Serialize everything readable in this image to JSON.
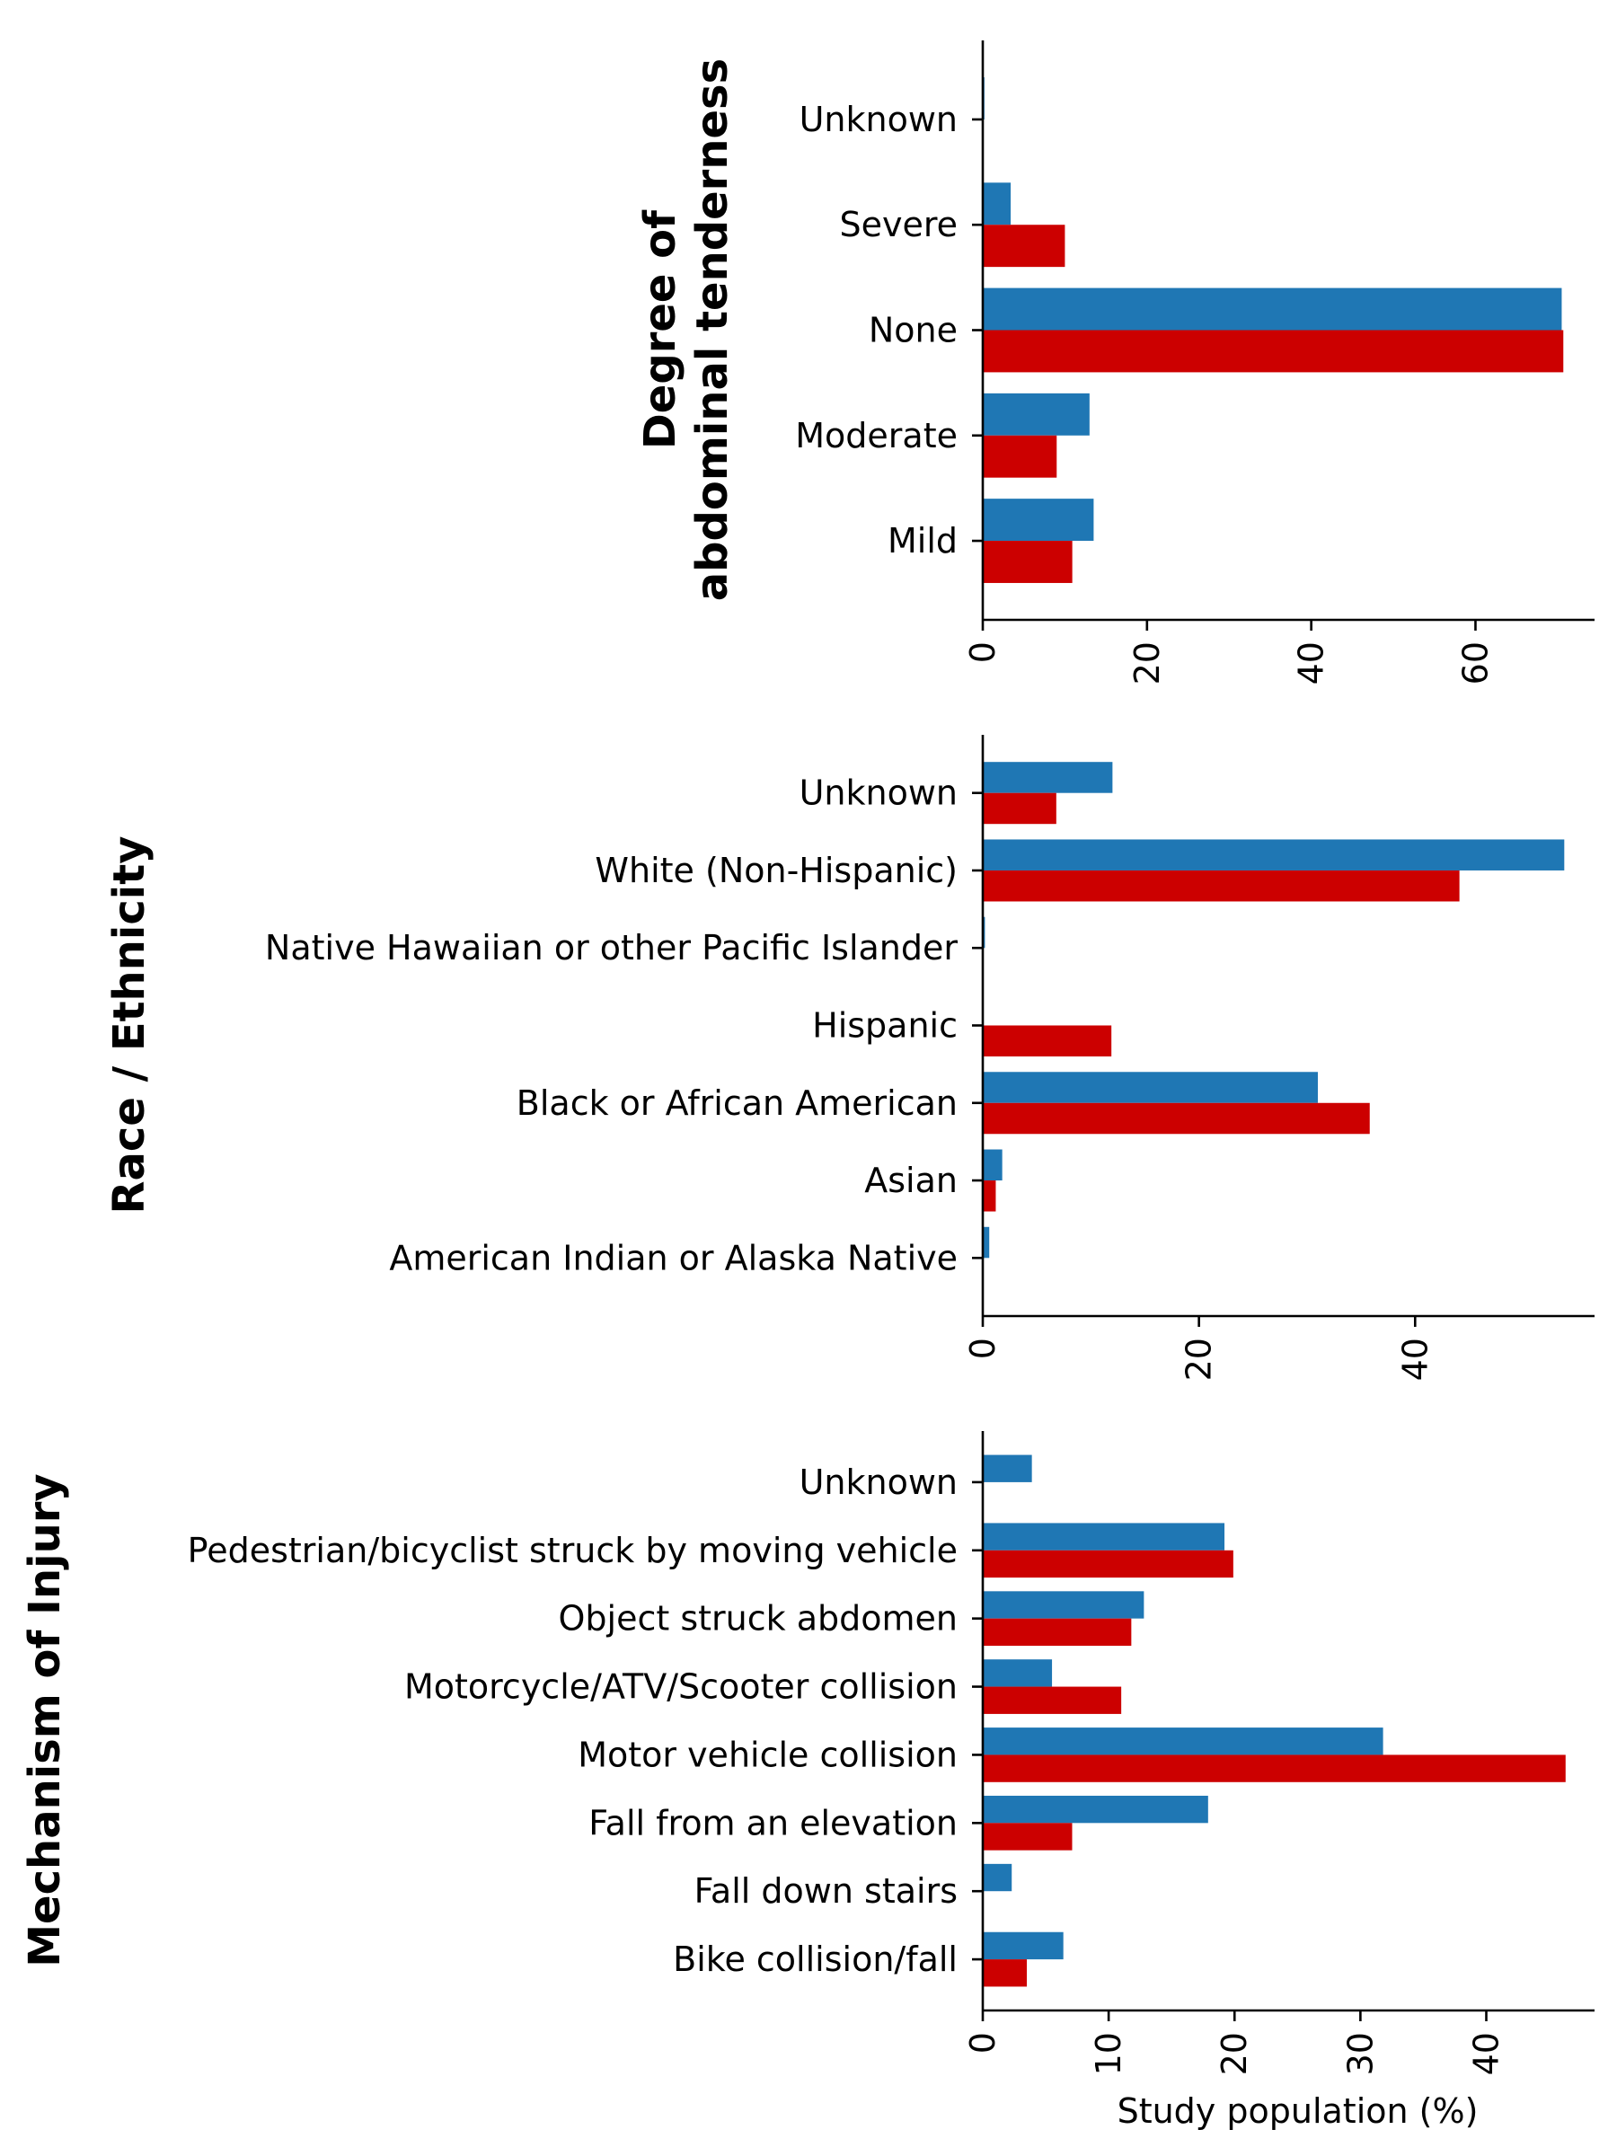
{
  "colors": {
    "series_a": "#1f77b4",
    "series_b": "#cc0000"
  },
  "chart_data": [
    {
      "type": "bar",
      "orientation": "horizontal",
      "ylabel": "Degree of\nabdominal tenderness",
      "xlabel": "",
      "categories": [
        "Mild",
        "Moderate",
        "None",
        "Severe",
        "Unknown"
      ],
      "series": [
        {
          "values": [
            13.5,
            13.0,
            70.5,
            3.4,
            0.2
          ]
        },
        {
          "values": [
            10.9,
            9.0,
            70.7,
            10.0,
            0.0
          ]
        }
      ],
      "xlim": [
        0,
        74.5
      ],
      "xticks": [
        0,
        20,
        40,
        60
      ],
      "grid": false
    },
    {
      "type": "bar",
      "orientation": "horizontal",
      "ylabel": "Race / Ethnicity",
      "xlabel": "",
      "categories": [
        "American Indian or Alaska Native",
        "Asian",
        "Black or African American",
        "Hispanic",
        "Native Hawaiian or other Pacific Islander",
        "White (Non-Hispanic)",
        "Unknown"
      ],
      "series": [
        {
          "values": [
            0.6,
            1.8,
            31.0,
            0.0,
            0.2,
            53.8,
            12.0
          ]
        },
        {
          "values": [
            0.0,
            1.2,
            35.8,
            11.9,
            0.0,
            44.1,
            6.8
          ]
        }
      ],
      "xlim": [
        0,
        56.6
      ],
      "xticks": [
        0,
        20,
        40
      ],
      "grid": false
    },
    {
      "type": "bar",
      "orientation": "horizontal",
      "ylabel": "Mechanism of Injury",
      "xlabel": "Study population (%)",
      "categories": [
        "Bike collision/fall",
        "Fall down stairs",
        "Fall from an elevation",
        "Motor vehicle collision",
        "Motorcycle/ATV/Scooter collision",
        "Object struck abdomen",
        "Pedestrian/bicyclist struck by moving vehicle",
        "Unknown"
      ],
      "series": [
        {
          "values": [
            6.4,
            2.3,
            17.9,
            31.8,
            5.5,
            12.8,
            19.2,
            3.9
          ]
        },
        {
          "values": [
            3.5,
            0.0,
            7.1,
            46.3,
            11.0,
            11.8,
            19.9,
            0.0
          ]
        }
      ],
      "xlim": [
        0,
        48.6
      ],
      "xticks": [
        0,
        10,
        20,
        30,
        40
      ],
      "grid": false
    }
  ]
}
